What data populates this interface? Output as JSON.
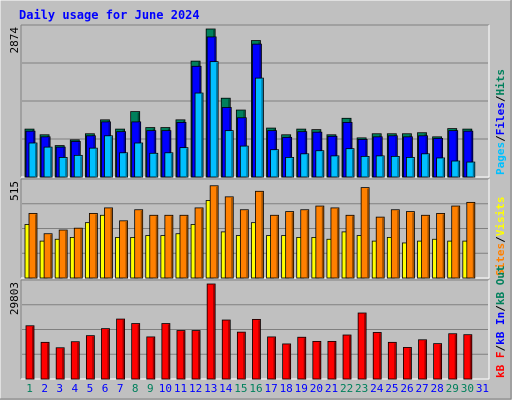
{
  "title": "Daily usage for June 2024",
  "colors": {
    "background": "#C0C0C0",
    "title": "#0000FF",
    "hits": "#00805C",
    "files": "#0000FF",
    "pages": "#00C0FF",
    "visits": "#FFFF00",
    "sites": "#FF8000",
    "kbytes": "#FF0000",
    "weekend_day": "#00805C",
    "weekday": "#0000FF",
    "out_label": "#00805C",
    "in_label": "#0000FF"
  },
  "day_labels": [
    "1",
    "2",
    "3",
    "4",
    "5",
    "6",
    "7",
    "8",
    "9",
    "10",
    "11",
    "12",
    "13",
    "14",
    "15",
    "16",
    "17",
    "18",
    "19",
    "20",
    "21",
    "22",
    "23",
    "24",
    "25",
    "26",
    "27",
    "28",
    "29",
    "30",
    "31"
  ],
  "weekend_days": [
    1,
    8,
    9,
    15,
    16,
    22,
    23,
    29,
    30
  ],
  "right_labels": {
    "top": [
      "Pages",
      "/",
      "Files",
      "/",
      "Hits"
    ],
    "middle": [
      "Sites",
      "/",
      "Visits"
    ],
    "bottom": [
      "kB F",
      "/",
      "kB In",
      "/",
      "kB Out"
    ]
  },
  "chart_data": [
    {
      "type": "bar",
      "panel": "hits-files-pages",
      "y_max_label": "2874",
      "ylim": [
        0,
        2874
      ],
      "grid": true,
      "series": [
        {
          "name": "Hits",
          "values": [
            930,
            820,
            610,
            720,
            840,
            1110,
            930,
            1270,
            960,
            960,
            1110,
            2250,
            2874,
            1530,
            1300,
            2650,
            950,
            820,
            930,
            920,
            820,
            1140,
            760,
            840,
            840,
            840,
            860,
            780,
            940,
            930
          ]
        },
        {
          "name": "Files",
          "values": [
            890,
            780,
            580,
            690,
            800,
            1070,
            880,
            1070,
            900,
            900,
            1060,
            2150,
            2720,
            1350,
            1150,
            2580,
            900,
            770,
            880,
            870,
            790,
            1060,
            730,
            780,
            800,
            780,
            800,
            750,
            900,
            890
          ]
        },
        {
          "name": "Pages",
          "values": [
            660,
            580,
            380,
            420,
            560,
            800,
            470,
            660,
            460,
            470,
            570,
            1630,
            2240,
            900,
            600,
            1920,
            530,
            380,
            450,
            510,
            410,
            550,
            400,
            410,
            400,
            380,
            450,
            370,
            310,
            290
          ]
        }
      ]
    },
    {
      "type": "bar",
      "panel": "sites-visits",
      "y_max_label": "515",
      "ylim": [
        0,
        515
      ],
      "grid": true,
      "series": [
        {
          "name": "Sites",
          "values": [
            350,
            240,
            260,
            270,
            350,
            380,
            310,
            370,
            340,
            340,
            340,
            380,
            500,
            440,
            370,
            470,
            340,
            360,
            370,
            390,
            380,
            340,
            490,
            330,
            370,
            360,
            340,
            350,
            390,
            410
          ]
        },
        {
          "name": "Visits",
          "values": [
            290,
            200,
            210,
            220,
            300,
            340,
            220,
            220,
            230,
            230,
            240,
            290,
            420,
            250,
            230,
            300,
            230,
            230,
            220,
            220,
            210,
            250,
            230,
            200,
            220,
            190,
            200,
            210,
            200,
            200
          ]
        }
      ]
    },
    {
      "type": "bar",
      "panel": "kbytes",
      "y_max_label": "29803",
      "ylim": [
        0,
        29803
      ],
      "grid": true,
      "series": [
        {
          "name": "kB F",
          "values": [
            16700,
            11500,
            9800,
            11700,
            13600,
            15800,
            18800,
            17400,
            13200,
            17400,
            15200,
            15200,
            29803,
            18500,
            14700,
            18700,
            13200,
            11000,
            13100,
            11800,
            11800,
            13800,
            20700,
            14600,
            11500,
            9900,
            12300,
            11100,
            14200,
            13900
          ]
        }
      ]
    }
  ]
}
